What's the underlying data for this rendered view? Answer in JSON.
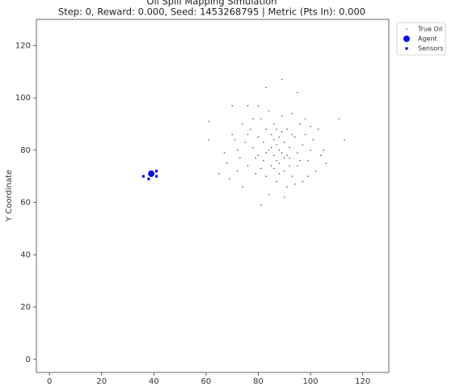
{
  "chart_data": {
    "type": "scatter",
    "title": "Oil Spill Mapping Simulation",
    "subtitle": "Step: 0, Reward: 0.000, Seed: 1453268795 | Metric (Pts In): 0.000",
    "y_label": "Y Coordinate",
    "xlim": [
      -5,
      130
    ],
    "ylim": [
      -5,
      130
    ],
    "xticks": [
      0,
      20,
      40,
      60,
      80,
      100,
      120
    ],
    "yticks": [
      0,
      20,
      40,
      60,
      80,
      100,
      120
    ],
    "grid": false,
    "legend": "outside upper right",
    "series": [
      {
        "name": "True Oil",
        "color": "#555555",
        "marker": "dot",
        "x": [
          61,
          61,
          83,
          89,
          95,
          111,
          113,
          81,
          65,
          67,
          70,
          76,
          80,
          70,
          71,
          72,
          73,
          74,
          75,
          76,
          77,
          78,
          79,
          80,
          80,
          81,
          82,
          82,
          83,
          83,
          84,
          84,
          85,
          85,
          86,
          86,
          87,
          87,
          88,
          88,
          89,
          89,
          90,
          90,
          91,
          91,
          92,
          92,
          93,
          93,
          94,
          95,
          95,
          96,
          97,
          97,
          98,
          99,
          100,
          101,
          102,
          103,
          104,
          105,
          106,
          68,
          69,
          72,
          74,
          76,
          78,
          79,
          81,
          83,
          84,
          86,
          87,
          88,
          89,
          90,
          91,
          92,
          93,
          94,
          96,
          98,
          99,
          100,
          85,
          86,
          88,
          90,
          87
        ],
        "y": [
          91,
          84,
          104,
          107,
          102,
          92,
          84,
          59,
          71,
          79,
          97,
          97,
          97,
          86,
          84,
          80,
          77,
          90,
          83,
          74,
          88,
          81,
          71,
          85,
          78,
          92,
          76,
          83,
          88,
          70,
          80,
          95,
          74,
          86,
          78,
          90,
          82,
          68,
          75,
          85,
          79,
          93,
          72,
          83,
          88,
          66,
          77,
          81,
          94,
          70,
          85,
          79,
          74,
          90,
          82,
          68,
          86,
          76,
          80,
          84,
          72,
          88,
          78,
          80,
          75,
          75,
          69,
          72,
          66,
          86,
          92,
          77,
          73,
          79,
          63,
          84,
          76,
          71,
          87,
          62,
          78,
          74,
          86,
          67,
          76,
          92,
          70,
          89,
          81,
          73,
          80,
          77,
          88
        ]
      },
      {
        "name": "Agent",
        "color": "#0a10e0",
        "marker": "circle",
        "x": [
          39
        ],
        "y": [
          71
        ]
      },
      {
        "name": "Sensors",
        "color": "#0a10e0",
        "marker": "square",
        "x": [
          36,
          41,
          38,
          41
        ],
        "y": [
          70,
          72,
          69,
          70
        ]
      }
    ]
  }
}
